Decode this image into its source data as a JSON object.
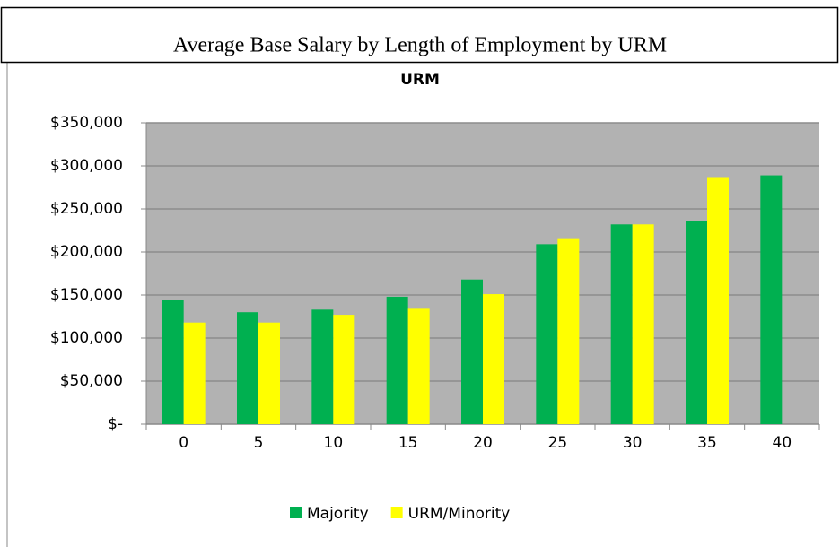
{
  "chart_data": {
    "type": "bar",
    "title": "Average Base Salary by Length of Employment by URM",
    "subtitle": "URM",
    "categories": [
      "0",
      "5",
      "10",
      "15",
      "20",
      "25",
      "30",
      "35",
      "40"
    ],
    "series": [
      {
        "name": "Majority",
        "color": "#00b050",
        "values": [
          144000,
          130000,
          133000,
          148000,
          168000,
          209000,
          232000,
          236000,
          289000
        ]
      },
      {
        "name": "URM/Minority",
        "color": "#ffff00",
        "values": [
          118000,
          118000,
          127000,
          134000,
          151000,
          216000,
          232000,
          287000,
          null
        ]
      }
    ],
    "ylim": [
      0,
      350000
    ],
    "yticks": [
      {
        "value": 0,
        "label": "$-"
      },
      {
        "value": 50000,
        "label": "$50,000"
      },
      {
        "value": 100000,
        "label": "$100,000"
      },
      {
        "value": 150000,
        "label": "$150,000"
      },
      {
        "value": 200000,
        "label": "$200,000"
      },
      {
        "value": 250000,
        "label": "$250,000"
      },
      {
        "value": 300000,
        "label": "$300,000"
      },
      {
        "value": 350000,
        "label": "$350,000"
      }
    ],
    "grid": true,
    "legend": "bottom"
  }
}
